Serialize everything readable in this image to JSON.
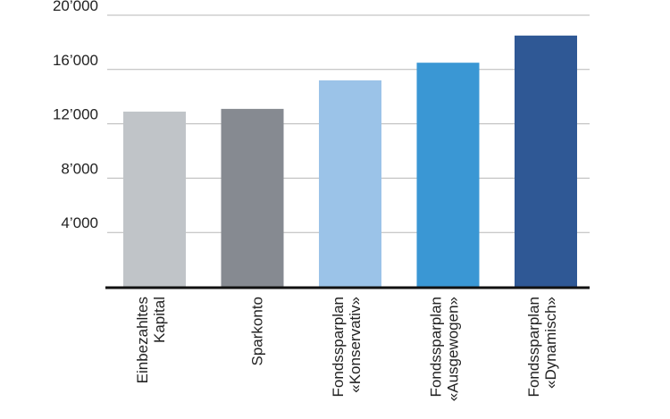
{
  "chart_data": {
    "type": "bar",
    "categories": [
      [
        "Einbezahltes",
        "Kapital"
      ],
      [
        "Sparkonto"
      ],
      [
        "Fondssparplan",
        "«Konservativ»"
      ],
      [
        "Fondssparplan",
        "«Ausgewogen»"
      ],
      [
        "Fondssparplan",
        "«Dynamisch»"
      ]
    ],
    "values": [
      12900,
      13100,
      15200,
      16500,
      18500
    ],
    "colors": [
      "#c0c4c8",
      "#868a91",
      "#9bc3e8",
      "#3a97d4",
      "#2f5895"
    ],
    "ylim": [
      0,
      20000
    ],
    "yticks": [
      {
        "value": 4000,
        "label": "4’000"
      },
      {
        "value": 8000,
        "label": "8’000"
      },
      {
        "value": 12000,
        "label": "12’000"
      },
      {
        "value": 16000,
        "label": "16’000"
      },
      {
        "value": 20000,
        "label": "20’000"
      }
    ],
    "grid": true,
    "title": "",
    "xlabel": "",
    "ylabel": ""
  }
}
